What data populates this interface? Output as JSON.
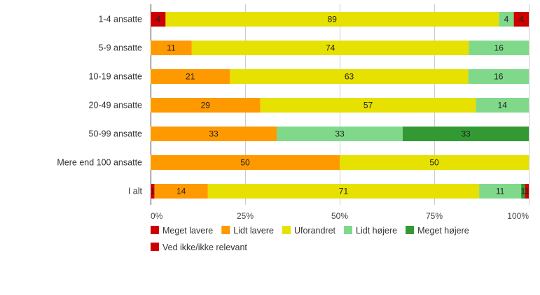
{
  "chart_data": {
    "type": "bar",
    "orientation": "horizontal",
    "stacked": true,
    "percent": true,
    "categories": [
      "1-4 ansatte",
      "5-9 ansatte",
      "10-19 ansatte",
      "20-49 ansatte",
      "50-99 ansatte",
      "Mere end 100 ansatte",
      "I alt"
    ],
    "series": [
      {
        "name": "Meget lavere",
        "color": "#cc0000",
        "values": [
          4,
          0,
          0,
          0,
          0,
          0,
          1
        ]
      },
      {
        "name": "Lidt lavere",
        "color": "#ff9900",
        "values": [
          0,
          11,
          21,
          29,
          33,
          50,
          14
        ]
      },
      {
        "name": "Uforandret",
        "color": "#e6e100",
        "values": [
          89,
          74,
          63,
          57,
          0,
          50,
          71
        ]
      },
      {
        "name": "Lidt højere",
        "color": "#80d98a",
        "values": [
          4,
          16,
          16,
          14,
          33,
          0,
          11
        ]
      },
      {
        "name": "Meget højere",
        "color": "#339933",
        "values": [
          0,
          0,
          0,
          0,
          33,
          0,
          1
        ]
      },
      {
        "name": "Ved ikke/ikke relevant",
        "color": "#cc0000",
        "values": [
          4,
          0,
          0,
          0,
          0,
          0,
          1
        ]
      }
    ],
    "x_ticks": [
      "0%",
      "25%",
      "50%",
      "75%",
      "100%"
    ],
    "xlim": [
      0,
      100
    ],
    "grid": true,
    "legend_position": "bottom-left"
  }
}
